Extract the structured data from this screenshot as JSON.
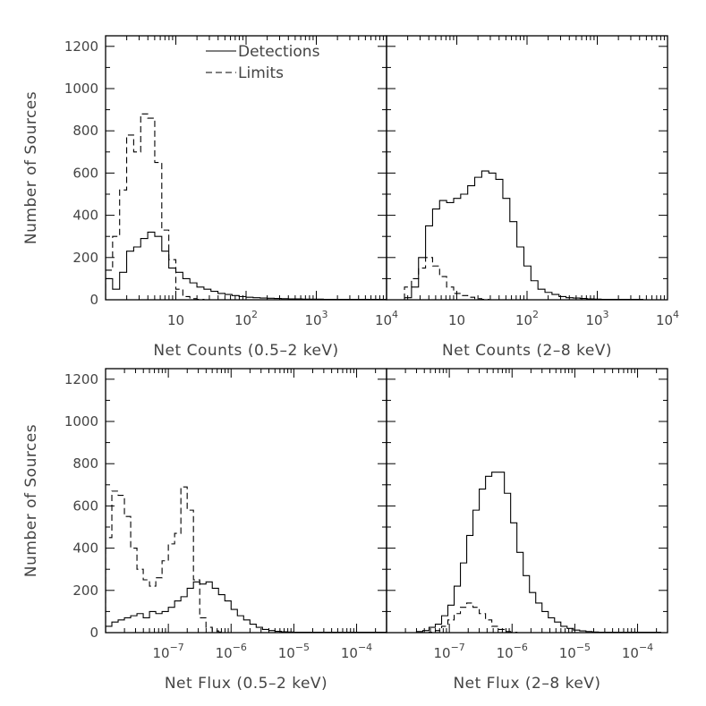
{
  "chart_data": [
    {
      "panel": "top-left",
      "type": "histogram",
      "xlabel": "Net Counts (0.5–2 keV)",
      "ylabel": "Number of Sources",
      "xscale": "log",
      "xlim": [
        1.0,
        10000
      ],
      "ylim": [
        0,
        1250
      ],
      "xticks": [
        {
          "v": 10,
          "label": "10"
        },
        {
          "v": 100,
          "label": "10",
          "exp": "2"
        },
        {
          "v": 1000,
          "label": "10",
          "exp": "3"
        },
        {
          "v": 10000,
          "label": "10",
          "exp": "4"
        }
      ],
      "yticks": [
        0,
        200,
        400,
        600,
        800,
        1000,
        1200
      ],
      "legend": {
        "placement": "top-left",
        "entries": [
          "Detections",
          "Limits"
        ]
      },
      "bin_dex": 0.1,
      "series": [
        {
          "name": "Detections",
          "style": "solid",
          "x_start": 1.0,
          "values": [
            100,
            50,
            130,
            230,
            250,
            290,
            320,
            300,
            230,
            150,
            130,
            100,
            80,
            60,
            50,
            40,
            30,
            25,
            20,
            15,
            12,
            10,
            8,
            7,
            6,
            5,
            4,
            4,
            3,
            3,
            3,
            2,
            2,
            2,
            2,
            2,
            2,
            2,
            2,
            2
          ]
        },
        {
          "name": "Limits",
          "style": "dashed",
          "x_start": 1.0,
          "values": [
            140,
            300,
            520,
            780,
            700,
            880,
            860,
            650,
            330,
            190,
            50,
            15,
            5,
            2,
            0,
            0,
            0,
            0,
            0,
            0,
            0,
            0,
            0,
            0,
            0,
            0,
            0,
            0,
            0,
            0,
            0,
            0,
            0,
            0,
            0,
            0,
            0,
            0,
            0,
            0
          ]
        }
      ]
    },
    {
      "panel": "top-right",
      "type": "histogram",
      "xlabel": "Net Counts (2–8 keV)",
      "xscale": "log",
      "xlim": [
        1.0,
        10000
      ],
      "ylim": [
        0,
        1250
      ],
      "xticks": [
        {
          "v": 10,
          "label": "10"
        },
        {
          "v": 100,
          "label": "10",
          "exp": "2"
        },
        {
          "v": 1000,
          "label": "10",
          "exp": "3"
        },
        {
          "v": 10000,
          "label": "10",
          "exp": "4"
        }
      ],
      "bin_dex": 0.1,
      "series": [
        {
          "name": "Detections",
          "style": "solid",
          "x_start": 1.8,
          "values": [
            10,
            60,
            200,
            350,
            430,
            470,
            460,
            480,
            500,
            540,
            580,
            610,
            600,
            570,
            480,
            370,
            250,
            160,
            90,
            50,
            35,
            25,
            15,
            10,
            8,
            6,
            4,
            3,
            2,
            2,
            2,
            2,
            2,
            2
          ]
        },
        {
          "name": "Limits",
          "style": "dashed",
          "x_start": 1.8,
          "values": [
            60,
            100,
            150,
            200,
            160,
            110,
            60,
            30,
            20,
            12,
            5,
            2,
            0,
            0,
            0,
            0,
            0,
            0,
            0,
            0,
            0,
            0,
            0,
            0,
            0,
            0,
            0,
            0,
            0,
            0,
            0,
            0,
            0,
            0
          ]
        }
      ]
    },
    {
      "panel": "bottom-left",
      "type": "histogram",
      "xlabel": "Net Flux (0.5–2 keV)",
      "ylabel": "Number of Sources",
      "xscale": "log",
      "xlim": [
        1e-08,
        0.0003
      ],
      "ylim": [
        0,
        1250
      ],
      "xticks": [
        {
          "v": 1e-07,
          "label": "10",
          "exp": "−7"
        },
        {
          "v": 1e-06,
          "label": "10",
          "exp": "−6"
        },
        {
          "v": 1e-05,
          "label": "10",
          "exp": "−5"
        },
        {
          "v": 0.0001,
          "label": "10",
          "exp": "−4"
        }
      ],
      "yticks": [
        0,
        200,
        400,
        600,
        800,
        1000,
        1200
      ],
      "bin_dex": 0.1,
      "series": [
        {
          "name": "Detections",
          "style": "solid",
          "x_start": 1e-08,
          "values": [
            30,
            50,
            60,
            70,
            80,
            90,
            70,
            100,
            90,
            100,
            120,
            150,
            170,
            210,
            240,
            230,
            240,
            210,
            180,
            150,
            110,
            80,
            60,
            40,
            25,
            15,
            10,
            6,
            4,
            3,
            2,
            2,
            2,
            2,
            2,
            2,
            2,
            2,
            2,
            2,
            2,
            2,
            2,
            2,
            2
          ]
        },
        {
          "name": "Limits",
          "style": "dashed",
          "x_start": 1e-08,
          "values": [
            450,
            670,
            650,
            550,
            400,
            300,
            250,
            220,
            260,
            340,
            420,
            470,
            690,
            580,
            250,
            70,
            25,
            8,
            3,
            0,
            0,
            0,
            0,
            0,
            0,
            0,
            0,
            0,
            0,
            0,
            0,
            0,
            0,
            0,
            0,
            0,
            0,
            0,
            0,
            0,
            0,
            0,
            0,
            0,
            0
          ]
        }
      ]
    },
    {
      "panel": "bottom-right",
      "type": "histogram",
      "xlabel": "Net Flux (2–8 keV)",
      "xscale": "log",
      "xlim": [
        1e-08,
        0.0003
      ],
      "ylim": [
        0,
        1250
      ],
      "xticks": [
        {
          "v": 1e-07,
          "label": "10",
          "exp": "−7"
        },
        {
          "v": 1e-06,
          "label": "10",
          "exp": "−6"
        },
        {
          "v": 1e-05,
          "label": "10",
          "exp": "−5"
        },
        {
          "v": 0.0001,
          "label": "10",
          "exp": "−4"
        }
      ],
      "bin_dex": 0.1,
      "series": [
        {
          "name": "Detections",
          "style": "solid",
          "x_start": 3e-08,
          "values": [
            5,
            10,
            25,
            40,
            80,
            130,
            220,
            330,
            460,
            580,
            680,
            740,
            760,
            760,
            660,
            520,
            380,
            270,
            190,
            140,
            100,
            70,
            50,
            30,
            20,
            12,
            8,
            5,
            3,
            2,
            2,
            2,
            2,
            2,
            2,
            2,
            2,
            2,
            2
          ]
        },
        {
          "name": "Limits",
          "style": "dashed",
          "x_start": 3e-08,
          "values": [
            0,
            0,
            2,
            10,
            30,
            60,
            90,
            120,
            140,
            120,
            90,
            60,
            30,
            15,
            5,
            2,
            0,
            0,
            0,
            0,
            0,
            0,
            0,
            0,
            0,
            0,
            0,
            0,
            0,
            0,
            0,
            0,
            0,
            0,
            0,
            0,
            0,
            0,
            0
          ]
        }
      ]
    }
  ]
}
